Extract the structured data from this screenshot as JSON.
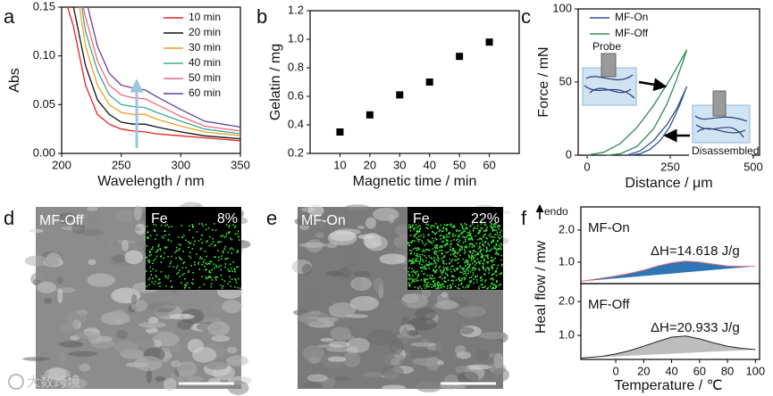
{
  "chart_data": [
    {
      "panel": "a",
      "type": "line",
      "xlabel": "Wavelength / nm",
      "ylabel": "Abs",
      "xlim": [
        200,
        350
      ],
      "xticks": [
        200,
        250,
        300,
        350
      ],
      "ylim": [
        0,
        0.15
      ],
      "yticks": [
        {
          "value": 0,
          "label": "0.00"
        },
        0.05,
        {
          "value": 0.1,
          "label": "0.10"
        },
        0.15
      ],
      "legend": "upper right",
      "series": [
        {
          "name": "10 min",
          "color": "#e8221f",
          "x": [
            205,
            210,
            220,
            230,
            240,
            250,
            260,
            270,
            280,
            300,
            320,
            350
          ],
          "values": [
            0.15,
            0.13,
            0.07,
            0.04,
            0.03,
            0.025,
            0.023,
            0.022,
            0.02,
            0.018,
            0.016,
            0.013
          ]
        },
        {
          "name": "20 min",
          "color": "#111111",
          "x": [
            210,
            220,
            230,
            240,
            250,
            260,
            270,
            280,
            300,
            320,
            350
          ],
          "values": [
            0.15,
            0.09,
            0.055,
            0.04,
            0.032,
            0.03,
            0.03,
            0.027,
            0.022,
            0.018,
            0.015
          ]
        },
        {
          "name": "30 min",
          "color": "#f0a020",
          "x": [
            215,
            220,
            230,
            240,
            250,
            260,
            270,
            280,
            300,
            320,
            350
          ],
          "values": [
            0.15,
            0.11,
            0.07,
            0.05,
            0.042,
            0.04,
            0.04,
            0.035,
            0.028,
            0.022,
            0.018
          ]
        },
        {
          "name": "40 min",
          "color": "#3aa89a",
          "x": [
            217,
            220,
            230,
            240,
            250,
            260,
            270,
            280,
            300,
            320,
            350
          ],
          "values": [
            0.15,
            0.125,
            0.085,
            0.06,
            0.05,
            0.048,
            0.047,
            0.042,
            0.033,
            0.025,
            0.02
          ]
        },
        {
          "name": "50 min",
          "color": "#f06a78",
          "x": [
            218,
            220,
            230,
            240,
            250,
            260,
            270,
            280,
            300,
            320,
            350
          ],
          "values": [
            0.15,
            0.14,
            0.095,
            0.07,
            0.06,
            0.057,
            0.056,
            0.05,
            0.038,
            0.028,
            0.023
          ]
        },
        {
          "name": "60 min",
          "color": "#6a3d9a",
          "x": [
            222,
            230,
            240,
            250,
            260,
            270,
            280,
            300,
            320,
            350
          ],
          "values": [
            0.15,
            0.11,
            0.082,
            0.07,
            0.067,
            0.065,
            0.058,
            0.045,
            0.033,
            0.027
          ]
        }
      ]
    },
    {
      "panel": "b",
      "type": "scatter",
      "xlabel": "Magnetic time / min",
      "ylabel": "Gelatin / mg",
      "x": [
        10,
        20,
        30,
        40,
        50,
        60
      ],
      "values": [
        0.35,
        0.47,
        0.61,
        0.7,
        0.88,
        0.98
      ],
      "color": "#000000",
      "xlim": [
        0,
        70
      ],
      "xticks": [
        10,
        20,
        30,
        40,
        50,
        60
      ],
      "ylim": [
        0.2,
        1.2
      ],
      "yticks": [
        0.2,
        0.4,
        0.6,
        0.8,
        {
          "value": 1,
          "label": "1.0"
        },
        1.2
      ]
    },
    {
      "panel": "c",
      "type": "line",
      "xlabel": "Distance / μm",
      "ylabel": "Force / mN",
      "xlim": [
        -27,
        519
      ],
      "xticks": [
        0,
        250,
        500
      ],
      "ylim": [
        0,
        100
      ],
      "yticks": [
        0,
        50,
        100
      ],
      "legend": "upper left",
      "annotations": [
        "Probe",
        "Disassembled"
      ],
      "series": [
        {
          "name": "MF-On",
          "color": "#2f5597",
          "x": [
            120,
            160,
            200,
            240,
            270,
            300,
            280,
            250,
            220,
            190,
            160,
            130
          ],
          "values": [
            0,
            3,
            10,
            21,
            32,
            47,
            35,
            20,
            10,
            4,
            1,
            0
          ]
        },
        {
          "name": "MF-Off",
          "color": "#2e8b57",
          "x": [
            0,
            50,
            100,
            150,
            200,
            250,
            300,
            270,
            240,
            200,
            150,
            100,
            60
          ],
          "values": [
            0,
            2,
            8,
            19,
            34,
            52,
            72,
            52,
            35,
            18,
            6,
            1,
            0
          ]
        }
      ]
    },
    {
      "panel": "d",
      "type": "image",
      "label": "MF-Off",
      "inset_label": "Fe",
      "values": [
        8
      ],
      "value_labels": [
        "8%"
      ],
      "watermark": "大数跨境"
    },
    {
      "panel": "e",
      "type": "image",
      "label": "MF-On",
      "inset_label": "Fe",
      "values": [
        22
      ],
      "value_labels": [
        "22%"
      ]
    },
    {
      "panel": "f",
      "type": "area",
      "xlabel": "Temperature / ℃",
      "ylabel": "Heal flow / mw",
      "y_arrow_label": "endo",
      "xlim": [
        -25,
        103
      ],
      "xticks": [
        0,
        20,
        40,
        60,
        80,
        100
      ],
      "subplots": [
        {
          "label": "MF-On",
          "annotation": "ΔH=14.618 J/g",
          "ylim": [
            0.33,
            2.72
          ],
          "yticks": [
            {
              "value": 1,
              "label": "1.0"
            },
            {
              "value": 2,
              "label": "2.0"
            }
          ],
          "x": [
            -25,
            -10,
            0,
            10,
            20,
            30,
            40,
            50,
            60,
            70,
            80,
            90,
            100
          ],
          "values": [
            0.4,
            0.5,
            0.57,
            0.65,
            0.75,
            0.88,
            0.98,
            1.03,
            1.0,
            0.94,
            0.88,
            0.87,
            0.87
          ],
          "color": "#2e75b6",
          "line_color": "#e87070"
        },
        {
          "label": "MF-Off",
          "annotation": "ΔH=20.933 J/g",
          "ylim": [
            0.29,
            2.53
          ],
          "yticks": [
            {
              "value": 1,
              "label": "1.0"
            },
            {
              "value": 2,
              "label": "2.0"
            }
          ],
          "x": [
            -25,
            -10,
            0,
            10,
            20,
            30,
            40,
            50,
            60,
            70,
            80,
            90,
            100
          ],
          "values": [
            0.33,
            0.38,
            0.45,
            0.55,
            0.68,
            0.82,
            0.95,
            0.98,
            0.9,
            0.78,
            0.68,
            0.62,
            0.58
          ],
          "color": "#bdbdbd",
          "line_color": "#222222"
        }
      ]
    }
  ]
}
